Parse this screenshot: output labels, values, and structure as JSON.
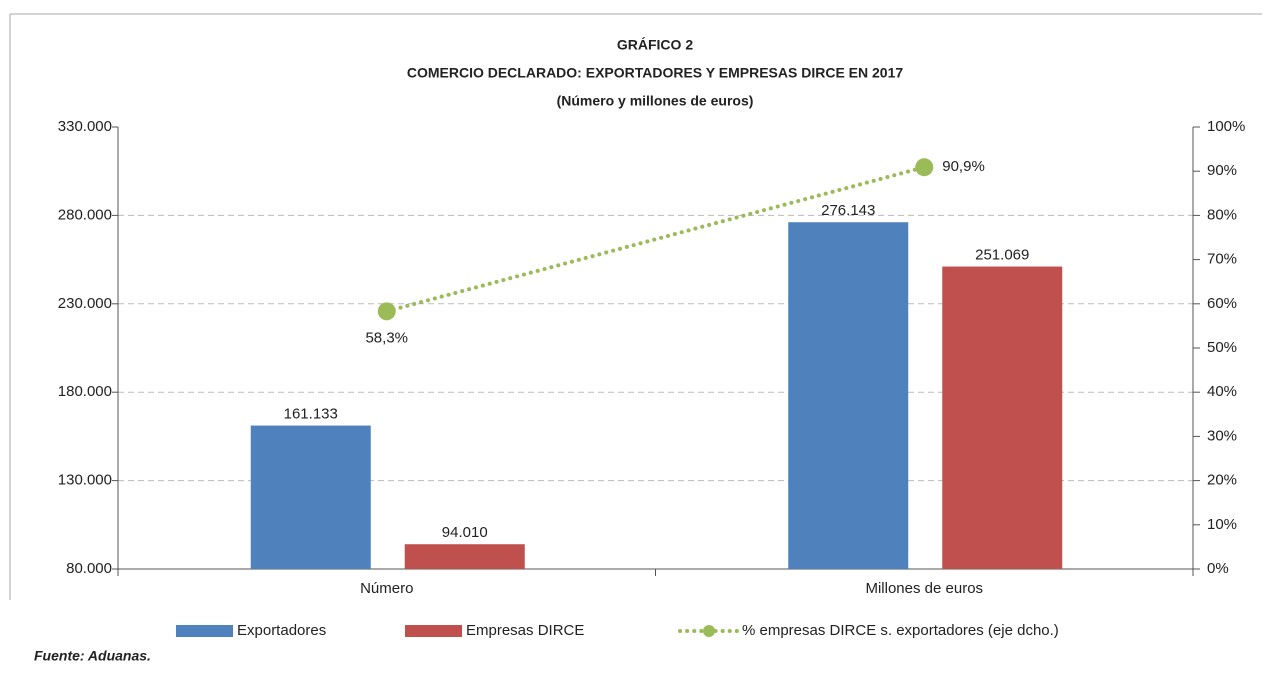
{
  "chart_data": {
    "type": "bar",
    "title": [
      "GRÁFICO 2",
      "COMERCIO DECLARADO: EXPORTADORES Y EMPRESAS DIRCE EN 2017",
      "(Número y millones de euros)"
    ],
    "categories": [
      "Número",
      "Millones de euros"
    ],
    "series": [
      {
        "name": "Exportadores",
        "color": "#4f81bd",
        "values": [
          161133,
          276143
        ],
        "value_labels": [
          "161.133",
          "276.143"
        ]
      },
      {
        "name": "Empresas DIRCE",
        "color": "#c0504d",
        "values": [
          94010,
          251069
        ],
        "value_labels": [
          "94.010",
          "251.069"
        ]
      },
      {
        "name": "% empresas DIRCE s. exportadores (eje dcho.)",
        "color": "#9bbb59",
        "type": "line",
        "axis": "y2",
        "values": [
          58.3,
          90.9
        ],
        "value_labels": [
          "58,3%",
          "90,9%"
        ]
      }
    ],
    "ylim": [
      80000,
      330000
    ],
    "yticks": [
      {
        "value": 80000,
        "label": "80.000"
      },
      {
        "value": 130000,
        "label": "130.000"
      },
      {
        "value": 180000,
        "label": "180.000"
      },
      {
        "value": 230000,
        "label": "230.000"
      },
      {
        "value": 280000,
        "label": "280.000"
      },
      {
        "value": 330000,
        "label": "330.000"
      }
    ],
    "y2lim": [
      0,
      100
    ],
    "y2ticks": [
      {
        "value": 0,
        "label": "0%"
      },
      {
        "value": 10,
        "label": "10%"
      },
      {
        "value": 20,
        "label": "20%"
      },
      {
        "value": 30,
        "label": "30%"
      },
      {
        "value": 40,
        "label": "40%"
      },
      {
        "value": 50,
        "label": "50%"
      },
      {
        "value": 60,
        "label": "60%"
      },
      {
        "value": 70,
        "label": "70%"
      },
      {
        "value": 80,
        "label": "80%"
      },
      {
        "value": 90,
        "label": "90%"
      },
      {
        "value": 100,
        "label": "100%"
      }
    ],
    "grid": true,
    "legend": "bottom",
    "source": "Fuente: Aduanas."
  }
}
